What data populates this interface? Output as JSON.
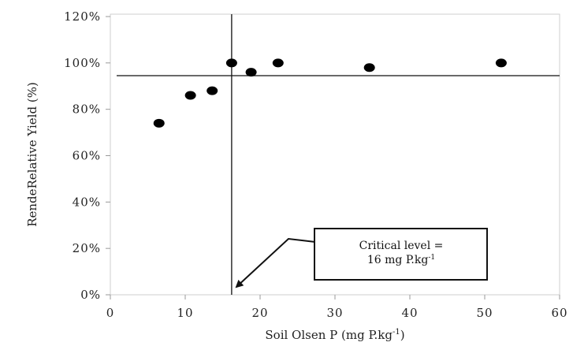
{
  "chart_data": {
    "type": "scatter",
    "xlabel": "Soil Olsen P (mg P.kg",
    "xlabel_sup": "-1",
    "xlabel_tail": ")",
    "ylabel": "RendeRelative Yield (%)",
    "xlim": [
      0,
      60
    ],
    "ylim": [
      0,
      1.2
    ],
    "x_ticks": [
      0,
      10,
      20,
      30,
      40,
      50,
      60
    ],
    "x_tick_labels": [
      "0",
      "10",
      "20",
      "30",
      "40",
      "50",
      "60"
    ],
    "y_ticks": [
      0,
      0.2,
      0.4,
      0.6,
      0.8,
      1.0,
      1.2
    ],
    "y_tick_labels": [
      "0%",
      "20%",
      "40%",
      "60%",
      "80%",
      "100%",
      "120%"
    ],
    "grid": false,
    "series": [
      {
        "points": [
          {
            "x": 6.5,
            "y": 0.74
          },
          {
            "x": 10.7,
            "y": 0.86
          },
          {
            "x": 13.6,
            "y": 0.88
          },
          {
            "x": 16.2,
            "y": 1.0
          },
          {
            "x": 18.8,
            "y": 0.96
          },
          {
            "x": 22.4,
            "y": 1.0
          },
          {
            "x": 34.6,
            "y": 0.98
          },
          {
            "x": 52.2,
            "y": 1.0
          }
        ]
      }
    ],
    "reference_lines": {
      "vertical_x": 16.2,
      "horizontal_y": 0.945
    },
    "annotation": {
      "line1": "Critical level =",
      "line2": "16 mg P.kg",
      "line2_sup": "-1"
    }
  }
}
